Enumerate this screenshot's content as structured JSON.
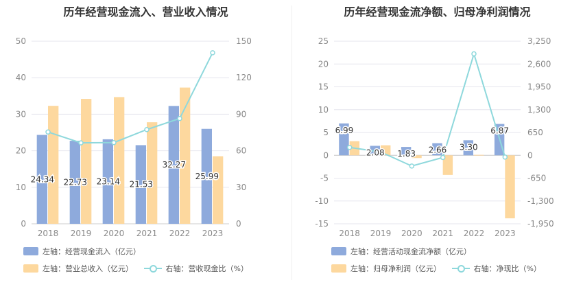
{
  "colors": {
    "bar_blue": "#8eaadc",
    "bar_orange": "#fdd89e",
    "line": "#8ed8dc",
    "axis_text": "#888888",
    "grid": "#e6e6ee"
  },
  "left": {
    "title": "历年经营现金流入、营业收入情况",
    "legend": [
      {
        "label": "左轴：经营现金流入（亿元）",
        "icon": "bar-swatch"
      },
      {
        "label": "左轴：营业总收入（亿元）",
        "icon": "bar-swatch"
      },
      {
        "label": "右轴：营收现金比（%）",
        "icon": "line-swatch"
      }
    ]
  },
  "right": {
    "title": "历年经营现金流净额、归母净利润情况",
    "legend": [
      {
        "label": "左轴：经营活动现金流净额（亿元）",
        "icon": "bar-swatch"
      },
      {
        "label": "左轴：归母净利润（亿元）",
        "icon": "bar-swatch"
      },
      {
        "label": "右轴：净现比（%）",
        "icon": "line-swatch"
      }
    ]
  },
  "chart_data": [
    {
      "type": "bar",
      "title": "历年经营现金流入、营业收入情况",
      "categories": [
        "2018",
        "2019",
        "2020",
        "2021",
        "2022",
        "2023"
      ],
      "y_left": {
        "min": 0,
        "max": 50,
        "ticks": [
          "0",
          "10",
          "20",
          "30",
          "40",
          "50"
        ]
      },
      "y_right": {
        "min": 0,
        "max": 150,
        "ticks": [
          "0",
          "30",
          "60",
          "90",
          "120",
          "150"
        ]
      },
      "series": [
        {
          "name": "左轴：经营现金流入（亿元）",
          "axis": "left",
          "kind": "bar",
          "values": [
            24.34,
            22.73,
            23.14,
            21.53,
            32.27,
            25.99
          ]
        },
        {
          "name": "左轴：营业总收入（亿元）",
          "axis": "left",
          "kind": "bar",
          "values": [
            32.3,
            34.2,
            34.7,
            27.8,
            37.3,
            18.5
          ]
        },
        {
          "name": "右轴：营收现金比（%）",
          "axis": "right",
          "kind": "line",
          "values": [
            75.4,
            66.5,
            66.7,
            77.4,
            86.5,
            140.5
          ]
        }
      ],
      "data_labels": [
        "24.34",
        "22.73",
        "23.14",
        "21.53",
        "32.27",
        "25.99"
      ],
      "grid": true,
      "legend_position": "bottom"
    },
    {
      "type": "bar",
      "title": "历年经营现金流净额、归母净利润情况",
      "categories": [
        "2018",
        "2019",
        "2020",
        "2021",
        "2022",
        "2023"
      ],
      "y_left": {
        "min": -15,
        "max": 25,
        "ticks": [
          "-15",
          "-10",
          "-5",
          "0",
          "5",
          "10",
          "15",
          "20",
          "25"
        ]
      },
      "y_right": {
        "min": -1950,
        "max": 3250,
        "ticks": [
          "-1,950",
          "-1,300",
          "-650",
          "0",
          "650",
          "1,300",
          "1,950",
          "2,600",
          "3,250"
        ]
      },
      "series": [
        {
          "name": "左轴：经营活动现金流净额（亿元）",
          "axis": "left",
          "kind": "bar",
          "values": [
            6.99,
            2.08,
            1.83,
            2.66,
            3.3,
            6.87
          ]
        },
        {
          "name": "左轴：归母净利润（亿元）",
          "axis": "left",
          "kind": "bar",
          "values": [
            3.1,
            2.2,
            -0.6,
            -4.3,
            0.1,
            -13.8
          ]
        },
        {
          "name": "右轴：净现比（%）",
          "axis": "right",
          "kind": "line",
          "values": [
            225,
            95,
            -305,
            -62,
            2890,
            -50
          ]
        }
      ],
      "data_labels": [
        "6.99",
        "2.08",
        "1.83",
        "2.66",
        "3.30",
        "6.87"
      ],
      "grid": true,
      "legend_position": "bottom"
    }
  ]
}
